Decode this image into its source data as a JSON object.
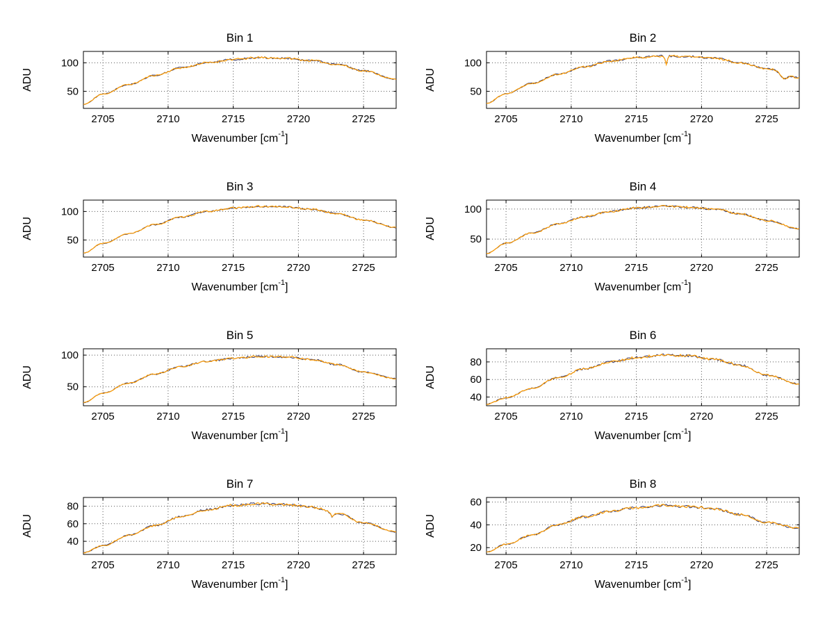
{
  "figure": {
    "background": "#ffffff",
    "line_color": "#ff9c00",
    "shadow_line_color": "#333366",
    "grid_color": "#555555",
    "axis_color": "#000000"
  },
  "labels": {
    "ylabel": "ADU",
    "xlabel_pre": "Wavenumber [cm",
    "xlabel_sup": "-1",
    "xlabel_post": "]"
  },
  "chart_data": [
    {
      "type": "line",
      "title": "Bin 1",
      "xlabel": "Wavenumber [cm^-1]",
      "ylabel": "ADU",
      "x": [
        2703.5,
        2705,
        2707,
        2709,
        2711,
        2713,
        2715,
        2717,
        2719,
        2721,
        2723,
        2725,
        2727.5
      ],
      "values": [
        27,
        45,
        62,
        78,
        91,
        100,
        106,
        109,
        108,
        104,
        97,
        86,
        71
      ],
      "xlim": [
        2703.5,
        2727.5
      ],
      "ylim": [
        20,
        120
      ],
      "xticks": [
        2705,
        2710,
        2715,
        2720,
        2725
      ],
      "yticks": [
        50,
        100
      ],
      "noise_amplitude": 1.8,
      "seed": 11,
      "spikes": []
    },
    {
      "type": "line",
      "title": "Bin 2",
      "xlabel": "Wavenumber [cm^-1]",
      "ylabel": "ADU",
      "x": [
        2703.5,
        2705,
        2707,
        2709,
        2711,
        2713,
        2715,
        2717,
        2719,
        2721,
        2723,
        2725,
        2727.5
      ],
      "values": [
        29,
        46,
        64,
        80,
        93,
        103,
        109,
        112,
        111,
        108,
        100,
        90,
        74
      ],
      "xlim": [
        2703.5,
        2727.5
      ],
      "ylim": [
        20,
        120
      ],
      "xticks": [
        2705,
        2710,
        2715,
        2720,
        2725
      ],
      "yticks": [
        50,
        100
      ],
      "noise_amplitude": 1.8,
      "seed": 22,
      "spikes": [
        {
          "x": 2717.3,
          "depth": 15,
          "width": 0.12
        },
        {
          "x": 2726.3,
          "depth": 9,
          "width": 0.35
        }
      ]
    },
    {
      "type": "line",
      "title": "Bin 3",
      "xlabel": "Wavenumber [cm^-1]",
      "ylabel": "ADU",
      "x": [
        2703.5,
        2705,
        2707,
        2709,
        2711,
        2713,
        2715,
        2717,
        2719,
        2721,
        2723,
        2725,
        2727.5
      ],
      "values": [
        27,
        44,
        61,
        77,
        90,
        100,
        106,
        109,
        108,
        104,
        96,
        85,
        72
      ],
      "xlim": [
        2703.5,
        2727.5
      ],
      "ylim": [
        20,
        120
      ],
      "xticks": [
        2705,
        2710,
        2715,
        2720,
        2725
      ],
      "yticks": [
        50,
        100
      ],
      "noise_amplitude": 1.5,
      "seed": 33,
      "spikes": []
    },
    {
      "type": "line",
      "title": "Bin 4",
      "xlabel": "Wavenumber [cm^-1]",
      "ylabel": "ADU",
      "x": [
        2703.5,
        2705,
        2707,
        2709,
        2711,
        2713,
        2715,
        2717,
        2719,
        2721,
        2723,
        2725,
        2727.5
      ],
      "values": [
        26,
        43,
        60,
        75,
        87,
        96,
        102,
        105,
        103,
        100,
        92,
        81,
        67
      ],
      "xlim": [
        2703.5,
        2727.5
      ],
      "ylim": [
        20,
        115
      ],
      "xticks": [
        2705,
        2710,
        2715,
        2720,
        2725
      ],
      "yticks": [
        50,
        100
      ],
      "noise_amplitude": 1.7,
      "seed": 44,
      "spikes": []
    },
    {
      "type": "line",
      "title": "Bin 5",
      "xlabel": "Wavenumber [cm^-1]",
      "ylabel": "ADU",
      "x": [
        2703.5,
        2705,
        2707,
        2709,
        2711,
        2713,
        2715,
        2717,
        2719,
        2721,
        2723,
        2725,
        2727.5
      ],
      "values": [
        25,
        40,
        56,
        70,
        82,
        90,
        95,
        98,
        97,
        93,
        85,
        73,
        63
      ],
      "xlim": [
        2703.5,
        2727.5
      ],
      "ylim": [
        20,
        110
      ],
      "xticks": [
        2705,
        2710,
        2715,
        2720,
        2725
      ],
      "yticks": [
        50,
        100
      ],
      "noise_amplitude": 1.5,
      "seed": 55,
      "spikes": []
    },
    {
      "type": "line",
      "title": "Bin 6",
      "xlabel": "Wavenumber [cm^-1]",
      "ylabel": "ADU",
      "x": [
        2703.5,
        2705,
        2707,
        2709,
        2711,
        2713,
        2715,
        2717,
        2719,
        2721,
        2723,
        2725,
        2727.5
      ],
      "values": [
        32,
        39,
        50,
        62,
        72,
        80,
        85,
        88,
        87,
        83,
        76,
        65,
        55
      ],
      "xlim": [
        2703.5,
        2727.5
      ],
      "ylim": [
        30,
        95
      ],
      "xticks": [
        2705,
        2710,
        2715,
        2720,
        2725
      ],
      "yticks": [
        40,
        60,
        80
      ],
      "noise_amplitude": 1.4,
      "seed": 66,
      "spikes": []
    },
    {
      "type": "line",
      "title": "Bin 7",
      "xlabel": "Wavenumber [cm^-1]",
      "ylabel": "ADU",
      "x": [
        2703.5,
        2705,
        2707,
        2709,
        2711,
        2713,
        2715,
        2717,
        2719,
        2721,
        2723,
        2725,
        2727.5
      ],
      "values": [
        27,
        35,
        47,
        58,
        68,
        76,
        81,
        83,
        82,
        79,
        72,
        61,
        51
      ],
      "xlim": [
        2703.5,
        2727.5
      ],
      "ylim": [
        25,
        90
      ],
      "xticks": [
        2705,
        2710,
        2715,
        2720,
        2725
      ],
      "yticks": [
        40,
        60,
        80
      ],
      "noise_amplitude": 1.4,
      "seed": 77,
      "spikes": [
        {
          "x": 2722.6,
          "depth": 6,
          "width": 0.15
        }
      ]
    },
    {
      "type": "line",
      "title": "Bin 8",
      "xlabel": "Wavenumber [cm^-1]",
      "ylabel": "ADU",
      "x": [
        2703.5,
        2705,
        2707,
        2709,
        2711,
        2713,
        2715,
        2717,
        2719,
        2721,
        2723,
        2725,
        2727.5
      ],
      "values": [
        16,
        23,
        31,
        40,
        47,
        52,
        55,
        57,
        56,
        54,
        49,
        42,
        37
      ],
      "xlim": [
        2703.5,
        2727.5
      ],
      "ylim": [
        14,
        64
      ],
      "xticks": [
        2705,
        2710,
        2715,
        2720,
        2725
      ],
      "yticks": [
        20,
        40,
        60
      ],
      "noise_amplitude": 1.1,
      "seed": 88,
      "spikes": []
    }
  ]
}
